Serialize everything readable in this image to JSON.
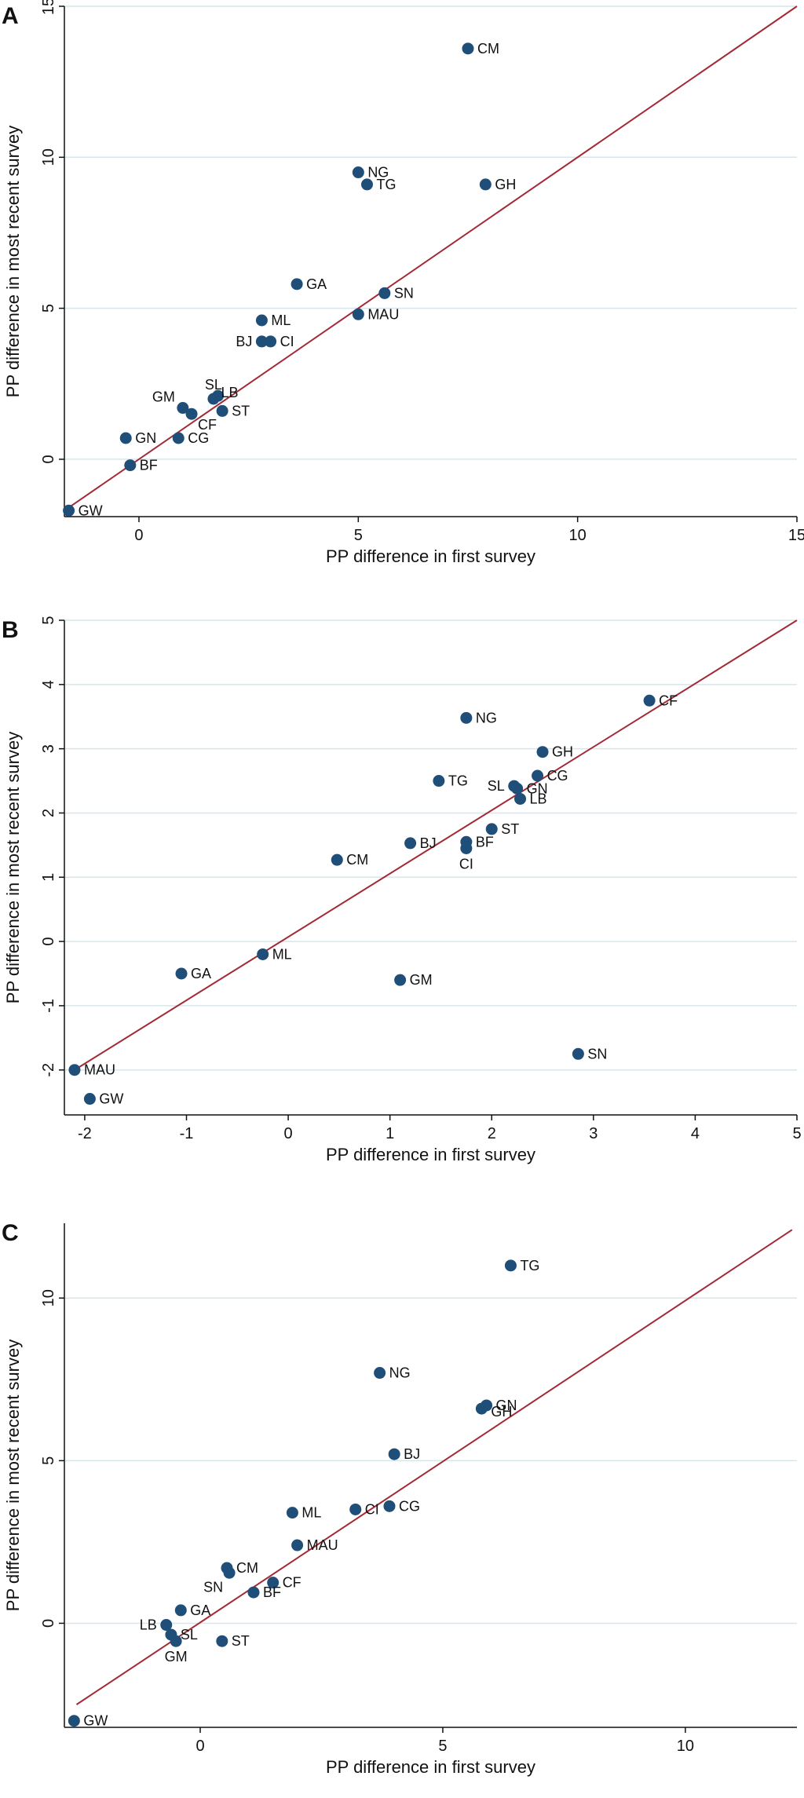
{
  "chart_data": [
    {
      "panel": "A",
      "type": "scatter",
      "xlabel": "PP difference in first survey",
      "ylabel": "PP difference in most recent survey",
      "xlim": [
        -1.7,
        15
      ],
      "ylim": [
        -1.9,
        15
      ],
      "xticks": [
        0,
        5,
        10,
        15
      ],
      "yticks": [
        0,
        5,
        10,
        15
      ],
      "gridlines": "horizontal",
      "colors": {
        "point": "#1f4e79",
        "line": "#a32a35",
        "grid": "#d6e6ea"
      },
      "fit_line": {
        "x": [
          -1.6,
          15
        ],
        "y": [
          -1.6,
          15
        ]
      },
      "points": [
        {
          "label": "CM",
          "x": 7.5,
          "y": 13.6
        },
        {
          "label": "NG",
          "x": 5.0,
          "y": 9.5
        },
        {
          "label": "TG",
          "x": 5.2,
          "y": 9.1
        },
        {
          "label": "GH",
          "x": 7.9,
          "y": 9.1
        },
        {
          "label": "GA",
          "x": 3.6,
          "y": 5.8
        },
        {
          "label": "SN",
          "x": 5.6,
          "y": 5.5
        },
        {
          "label": "MAU",
          "x": 5.0,
          "y": 4.8
        },
        {
          "label": "ML",
          "x": 2.8,
          "y": 4.6
        },
        {
          "label": "BJ",
          "x": 2.8,
          "y": 3.9
        },
        {
          "label": "CI",
          "x": 3.0,
          "y": 3.9
        },
        {
          "label": "SL",
          "x": 1.7,
          "y": 2.0
        },
        {
          "label": "LB",
          "x": 1.8,
          "y": 2.1
        },
        {
          "label": "GM",
          "x": 1.0,
          "y": 1.7
        },
        {
          "label": "CF",
          "x": 1.2,
          "y": 1.5
        },
        {
          "label": "ST",
          "x": 1.9,
          "y": 1.6
        },
        {
          "label": "GN",
          "x": -0.3,
          "y": 0.7
        },
        {
          "label": "CG",
          "x": 0.9,
          "y": 0.7
        },
        {
          "label": "BF",
          "x": -0.2,
          "y": -0.2
        },
        {
          "label": "GW",
          "x": -1.6,
          "y": -1.7
        }
      ]
    },
    {
      "panel": "B",
      "type": "scatter",
      "xlabel": "PP difference in first survey",
      "ylabel": "PP difference in most recent survey",
      "xlim": [
        -2.2,
        5
      ],
      "ylim": [
        -2.7,
        5
      ],
      "xticks": [
        -2,
        -1,
        0,
        1,
        2,
        3,
        4,
        5
      ],
      "yticks": [
        -2,
        -1,
        0,
        1,
        2,
        3,
        4,
        5
      ],
      "gridlines": "horizontal",
      "colors": {
        "point": "#1f4e79",
        "line": "#a32a35",
        "grid": "#d6e6ea"
      },
      "fit_line": {
        "x": [
          -2.1,
          5
        ],
        "y": [
          -2.0,
          5
        ]
      },
      "points": [
        {
          "label": "CF",
          "x": 3.55,
          "y": 3.75
        },
        {
          "label": "NG",
          "x": 1.75,
          "y": 3.48
        },
        {
          "label": "GH",
          "x": 2.5,
          "y": 2.95
        },
        {
          "label": "CG",
          "x": 2.45,
          "y": 2.58
        },
        {
          "label": "TG",
          "x": 1.48,
          "y": 2.5
        },
        {
          "label": "SL",
          "x": 2.22,
          "y": 2.42
        },
        {
          "label": "GN",
          "x": 2.25,
          "y": 2.38
        },
        {
          "label": "LB",
          "x": 2.28,
          "y": 2.22
        },
        {
          "label": "ST",
          "x": 2.0,
          "y": 1.75
        },
        {
          "label": "BJ",
          "x": 1.2,
          "y": 1.53
        },
        {
          "label": "BF",
          "x": 1.75,
          "y": 1.55
        },
        {
          "label": "CI",
          "x": 1.75,
          "y": 1.45
        },
        {
          "label": "CM",
          "x": 0.48,
          "y": 1.27
        },
        {
          "label": "ML",
          "x": -0.25,
          "y": -0.2
        },
        {
          "label": "GA",
          "x": -1.05,
          "y": -0.5
        },
        {
          "label": "GM",
          "x": 1.1,
          "y": -0.6
        },
        {
          "label": "SN",
          "x": 2.85,
          "y": -1.75
        },
        {
          "label": "MAU",
          "x": -2.1,
          "y": -2.0
        },
        {
          "label": "GW",
          "x": -1.95,
          "y": -2.45
        }
      ]
    },
    {
      "panel": "C",
      "type": "scatter",
      "xlabel": "PP difference in first survey",
      "ylabel": "PP difference in most recent survey",
      "xlim": [
        -2.8,
        12.3
      ],
      "ylim": [
        -3.2,
        12.3
      ],
      "xticks": [
        0,
        5,
        10
      ],
      "yticks": [
        0,
        5,
        10
      ],
      "gridlines": "horizontal",
      "colors": {
        "point": "#1f4e79",
        "line": "#a32a35",
        "grid": "#d6e6ea"
      },
      "fit_line": {
        "x": [
          -2.55,
          12.2
        ],
        "y": [
          -2.5,
          12.1
        ]
      },
      "points": [
        {
          "label": "TG",
          "x": 6.4,
          "y": 11.0
        },
        {
          "label": "NG",
          "x": 3.7,
          "y": 7.7
        },
        {
          "label": "GN",
          "x": 5.9,
          "y": 6.7
        },
        {
          "label": "GH",
          "x": 5.8,
          "y": 6.6
        },
        {
          "label": "BJ",
          "x": 4.0,
          "y": 5.2
        },
        {
          "label": "CG",
          "x": 3.9,
          "y": 3.6
        },
        {
          "label": "CI",
          "x": 3.2,
          "y": 3.5
        },
        {
          "label": "ML",
          "x": 1.9,
          "y": 3.4
        },
        {
          "label": "MAU",
          "x": 2.0,
          "y": 2.4
        },
        {
          "label": "CM",
          "x": 0.55,
          "y": 1.7
        },
        {
          "label": "SN",
          "x": 0.6,
          "y": 1.55
        },
        {
          "label": "CF",
          "x": 1.5,
          "y": 1.25
        },
        {
          "label": "BF",
          "x": 1.1,
          "y": 0.95
        },
        {
          "label": "GA",
          "x": -0.4,
          "y": 0.4
        },
        {
          "label": "LB",
          "x": -0.7,
          "y": -0.05
        },
        {
          "label": "SL",
          "x": -0.6,
          "y": -0.35
        },
        {
          "label": "GM",
          "x": -0.5,
          "y": -0.55
        },
        {
          "label": "ST",
          "x": 0.45,
          "y": -0.55
        },
        {
          "label": "GW",
          "x": -2.6,
          "y": -3.0
        }
      ]
    }
  ]
}
